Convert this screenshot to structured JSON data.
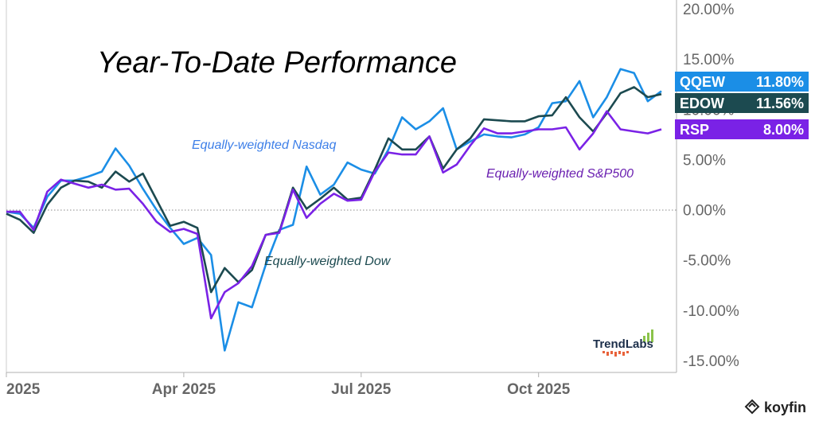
{
  "chart_data": {
    "type": "line",
    "title": "Year-To-Date Performance",
    "ylim": [
      -0.16,
      0.2
    ],
    "x_ticks": [
      "2025",
      "Apr 2025",
      "Jul 2025",
      "Oct 2025"
    ],
    "y_ticks": [
      "20.00%",
      "15.00%",
      "10.00%",
      "5.00%",
      "0.00%",
      "-5.00%",
      "-10.00%",
      "-15.00%"
    ],
    "y_tick_values": [
      0.2,
      0.15,
      0.1,
      0.05,
      0.0,
      -0.05,
      -0.1,
      -0.15
    ],
    "x_week_range": [
      0,
      46
    ],
    "series": [
      {
        "key": "qqew",
        "name": "QQEW",
        "last_label": "11.80%",
        "annotation": "Equally-weighted Nasdaq",
        "color": "#1b8ee6",
        "values": [
          -0.002,
          -0.004,
          -0.018,
          0.013,
          0.029,
          0.029,
          0.033,
          0.038,
          0.061,
          0.044,
          0.021,
          0.0,
          -0.018,
          -0.034,
          -0.028,
          -0.045,
          -0.14,
          -0.092,
          -0.097,
          -0.055,
          -0.02,
          -0.015,
          0.043,
          0.015,
          0.025,
          0.047,
          0.04,
          0.036,
          0.06,
          0.092,
          0.08,
          0.088,
          0.101,
          0.06,
          0.068,
          0.075,
          0.073,
          0.072,
          0.075,
          0.082,
          0.106,
          0.108,
          0.128,
          0.092,
          0.112,
          0.14,
          0.136,
          0.108,
          0.118
        ]
      },
      {
        "key": "edow",
        "name": "EDOW",
        "last_label": "11.56%",
        "annotation": "Equally-weighted Dow",
        "color": "#1c4a50",
        "values": [
          -0.004,
          -0.01,
          -0.023,
          0.005,
          0.022,
          0.029,
          0.028,
          0.022,
          0.038,
          0.028,
          0.036,
          0.01,
          -0.016,
          -0.012,
          -0.018,
          -0.082,
          -0.058,
          -0.072,
          -0.06,
          -0.025,
          -0.022,
          0.022,
          0.001,
          0.011,
          0.022,
          0.01,
          0.012,
          0.04,
          0.071,
          0.06,
          0.06,
          0.073,
          0.041,
          0.06,
          0.071,
          0.09,
          0.089,
          0.088,
          0.088,
          0.093,
          0.094,
          0.112,
          0.092,
          0.078,
          0.096,
          0.116,
          0.122,
          0.112,
          0.115
        ]
      },
      {
        "key": "rsp",
        "name": "RSP",
        "last_label": "8.00%",
        "annotation": "Equally-weighted S&P500",
        "color": "#7a22e6",
        "values": [
          -0.002,
          -0.002,
          -0.02,
          0.018,
          0.03,
          0.026,
          0.022,
          0.025,
          0.02,
          0.021,
          0.006,
          -0.012,
          -0.022,
          -0.019,
          -0.024,
          -0.108,
          -0.082,
          -0.073,
          -0.056,
          -0.025,
          -0.023,
          0.02,
          -0.008,
          0.006,
          0.016,
          0.009,
          0.01,
          0.038,
          0.057,
          0.055,
          0.055,
          0.073,
          0.037,
          0.045,
          0.064,
          0.081,
          0.076,
          0.076,
          0.078,
          0.08,
          0.08,
          0.082,
          0.06,
          0.076,
          0.098,
          0.08,
          0.078,
          0.076,
          0.08
        ]
      }
    ],
    "zero_line": true
  },
  "brand": {
    "trendlabs": "TrendLabs",
    "koyfin": "koyfin"
  }
}
